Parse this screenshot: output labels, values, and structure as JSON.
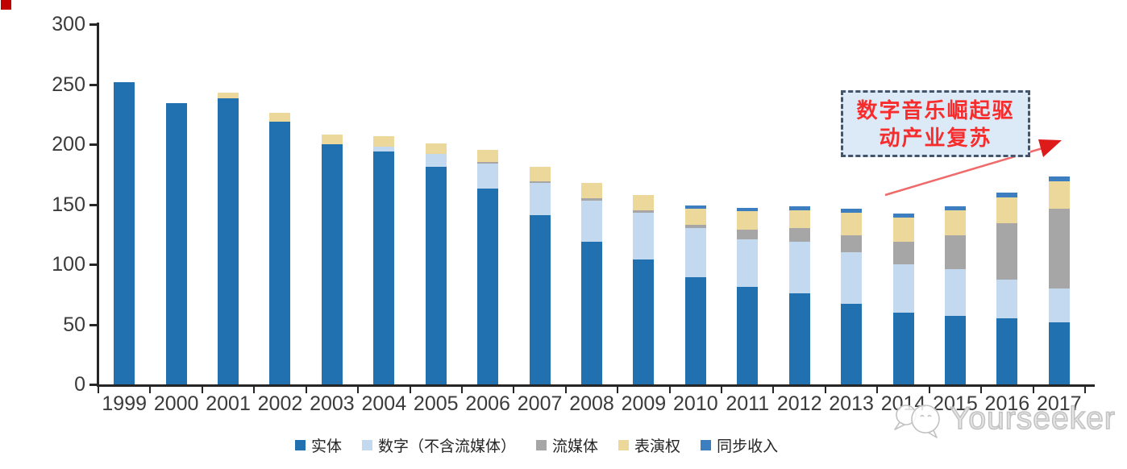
{
  "decorations": {
    "corner_square_color": "#C00000"
  },
  "annotation": {
    "line1": "数字音乐崛起驱",
    "line2": "动产业复苏",
    "text_color": "#F72C2C",
    "fill_color": "#DCE9F6",
    "border_color": "#44546A",
    "arrow_line_color": "#EF6A6A",
    "arrow_head_color": "#DD1B1B"
  },
  "watermark": {
    "brand": "Yourseeker",
    "logo": "chat-bubbles-logo",
    "color": "#C2C2C2"
  },
  "chart_data": {
    "type": "bar",
    "stacked": true,
    "title": "",
    "xlabel": "",
    "ylabel": "",
    "ylim": [
      0,
      300
    ],
    "y_ticks": [
      0,
      50,
      100,
      150,
      200,
      250,
      300
    ],
    "grid": false,
    "legend_position": "bottom",
    "axis_color": "#262626",
    "tick_label_color": "#3b3b3b",
    "categories": [
      "1999",
      "2000",
      "2001",
      "2002",
      "2003",
      "2004",
      "2005",
      "2006",
      "2007",
      "2008",
      "2009",
      "2010",
      "2011",
      "2012",
      "2013",
      "2014",
      "2015",
      "2016",
      "2017"
    ],
    "series": [
      {
        "name": "实体",
        "color": "#2171B0",
        "values": [
          252,
          234,
          238,
          219,
          200,
          194,
          181,
          163,
          141,
          119,
          104,
          89,
          81,
          76,
          67,
          60,
          57,
          55,
          52
        ]
      },
      {
        "name": "数字（不含流媒体）",
        "color": "#C3D9EF",
        "values": [
          0,
          0,
          0,
          0,
          0,
          4,
          11,
          21,
          27,
          34,
          39,
          41,
          40,
          43,
          43,
          40,
          39,
          32,
          28
        ]
      },
      {
        "name": "流媒体",
        "color": "#A6A6A6",
        "values": [
          0,
          0,
          0,
          0,
          0,
          0,
          0,
          1,
          1,
          2,
          2,
          3,
          8,
          11,
          14,
          19,
          28,
          47,
          66
        ]
      },
      {
        "name": "表演权",
        "color": "#EDD89B",
        "values": [
          0,
          0,
          5,
          7,
          8,
          9,
          9,
          10,
          12,
          13,
          13,
          13,
          15,
          15,
          19,
          20,
          21,
          22,
          23
        ]
      },
      {
        "name": "同步收入",
        "color": "#3C7EBF",
        "values": [
          0,
          0,
          0,
          0,
          0,
          0,
          0,
          0,
          0,
          0,
          0,
          3,
          3,
          3,
          3,
          3,
          3,
          4,
          4
        ]
      }
    ]
  }
}
